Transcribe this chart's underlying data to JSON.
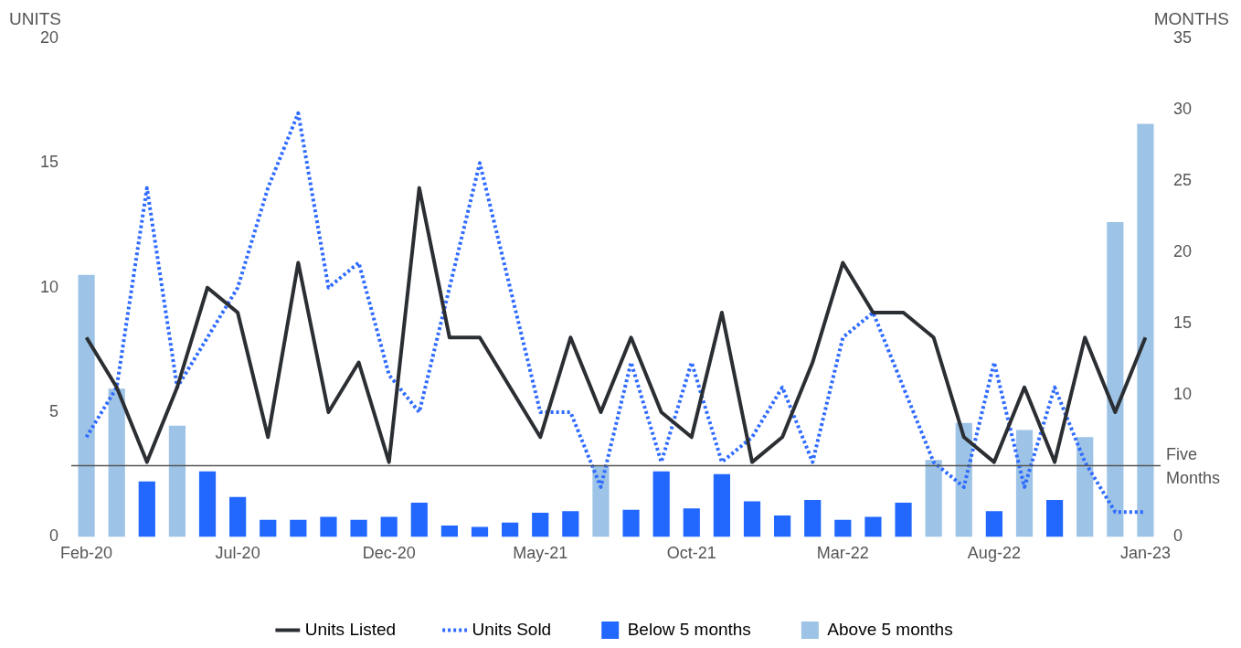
{
  "chart_data": {
    "type": "bar",
    "ylabel": "UNITS",
    "y2label": "MONTHS",
    "categories": [
      "Feb-20",
      null,
      null,
      null,
      null,
      "Jul-20",
      null,
      null,
      null,
      null,
      "Dec-20",
      null,
      null,
      null,
      null,
      "May-21",
      null,
      null,
      null,
      null,
      "Oct-21",
      null,
      null,
      null,
      null,
      "Mar-22",
      null,
      null,
      null,
      null,
      "Aug-22",
      null,
      null,
      null,
      null,
      "Jan-23"
    ],
    "series": [
      {
        "name": "Units Listed",
        "type": "line",
        "color": "#2b2f33",
        "line_style": "solid",
        "values": [
          8,
          6,
          3,
          6,
          10,
          9,
          4,
          11,
          5,
          7,
          3,
          14,
          8,
          8,
          6,
          4,
          8,
          5,
          8,
          5,
          4,
          9,
          3,
          4,
          7,
          11,
          9,
          9,
          8,
          4,
          3,
          6,
          3,
          8,
          5,
          8
        ]
      },
      {
        "name": "Units Sold",
        "type": "line",
        "color": "#2f6bff",
        "line_style": "dotted",
        "values": [
          4,
          6,
          14,
          6,
          8,
          10,
          14,
          17,
          10,
          11,
          6.5,
          5,
          10,
          15,
          10,
          5,
          5,
          2,
          7,
          3,
          7,
          3,
          4,
          6,
          3,
          8,
          9,
          6,
          3,
          2,
          7,
          2,
          6,
          3,
          1,
          1
        ]
      },
      {
        "name": "Below 5 months",
        "axis": "y2",
        "color": "#2268ff",
        "values": [
          null,
          null,
          3.9,
          null,
          4.6,
          2.8,
          1.2,
          1.2,
          1.4,
          1.2,
          1.4,
          2.4,
          0.8,
          0.7,
          1.0,
          1.7,
          1.8,
          null,
          1.9,
          4.6,
          2.0,
          4.4,
          2.5,
          1.5,
          2.6,
          1.2,
          1.4,
          2.4,
          null,
          null,
          1.8,
          null,
          2.6,
          null,
          null,
          null
        ]
      },
      {
        "name": "Above 5 months",
        "axis": "y2",
        "color": "#9dc3e6",
        "values": [
          18.4,
          10.4,
          null,
          7.8,
          null,
          null,
          null,
          null,
          null,
          null,
          null,
          null,
          null,
          null,
          null,
          null,
          null,
          5.0,
          null,
          null,
          null,
          null,
          null,
          null,
          null,
          null,
          null,
          null,
          5.4,
          8.0,
          null,
          7.5,
          null,
          7.0,
          22.1,
          29.0
        ]
      }
    ],
    "ylim": [
      0,
      20
    ],
    "yticks": [
      0,
      5,
      10,
      15,
      20
    ],
    "y2lim": [
      0,
      35
    ],
    "y2ticks": [
      0,
      10,
      15,
      20,
      25,
      30,
      35
    ],
    "ref_lines": [
      {
        "axis": "y2",
        "value": 5,
        "label": "Five Months",
        "color": "#555555"
      }
    ],
    "legend": "bottom",
    "marker": "none",
    "grid": false
  }
}
